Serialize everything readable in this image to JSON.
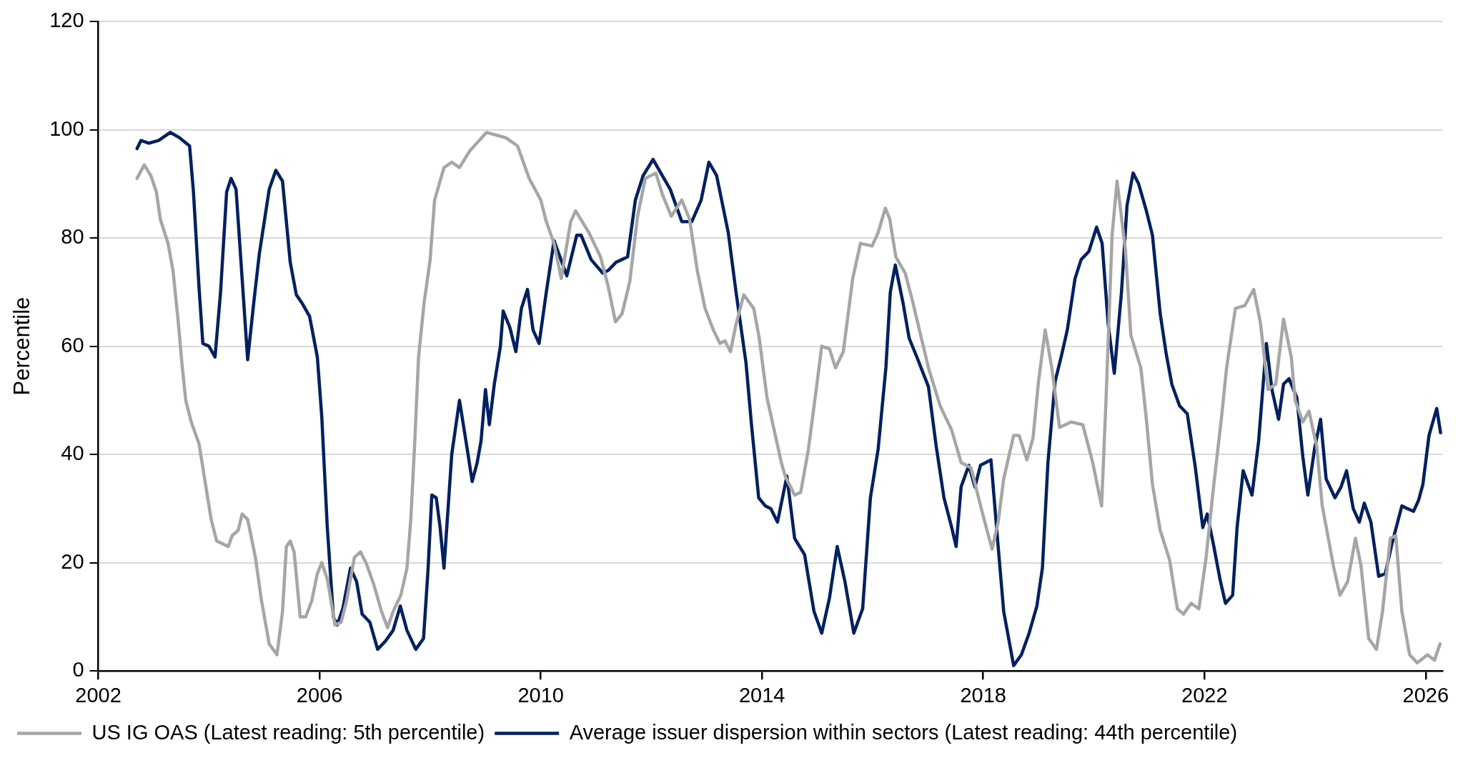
{
  "chart_data": {
    "type": "line",
    "ylabel": "Percentile",
    "xlim": [
      2002,
      2026.3
    ],
    "xticks": [
      2002,
      2006,
      2010,
      2014,
      2018,
      2022,
      2026
    ],
    "ylim": [
      0,
      120
    ],
    "yticks": [
      0,
      20,
      40,
      60,
      80,
      100,
      120
    ],
    "grid": "y",
    "legend": "bottom",
    "line_style": "solid",
    "series": [
      {
        "name": "US IG OAS (Latest reading: 5th percentile)",
        "color": "#a6a6a6",
        "x": [
          2002.7,
          2002.83,
          2002.95,
          2003.05,
          2003.12,
          2003.26,
          2003.35,
          2003.44,
          2003.51,
          2003.58,
          2003.68,
          2003.82,
          2003.93,
          2004.04,
          2004.14,
          2004.25,
          2004.35,
          2004.42,
          2004.53,
          2004.6,
          2004.7,
          2004.84,
          2004.95,
          2005.09,
          2005.23,
          2005.33,
          2005.4,
          2005.47,
          2005.54,
          2005.65,
          2005.75,
          2005.86,
          2005.96,
          2006.04,
          2006.14,
          2006.28,
          2006.39,
          2006.49,
          2006.63,
          2006.74,
          2006.84,
          2006.98,
          2007.12,
          2007.23,
          2007.33,
          2007.47,
          2007.58,
          2007.65,
          2007.72,
          2007.79,
          2007.89,
          2008.0,
          2008.08,
          2008.25,
          2008.39,
          2008.53,
          2008.71,
          2009.02,
          2009.37,
          2009.58,
          2009.79,
          2010.0,
          2010.1,
          2010.24,
          2010.37,
          2010.54,
          2010.63,
          2010.87,
          2011.08,
          2011.22,
          2011.35,
          2011.47,
          2011.61,
          2011.75,
          2011.89,
          2012.08,
          2012.2,
          2012.36,
          2012.55,
          2012.69,
          2012.83,
          2012.97,
          2013.12,
          2013.24,
          2013.33,
          2013.43,
          2013.53,
          2013.67,
          2013.85,
          2013.95,
          2014.09,
          2014.23,
          2014.35,
          2014.42,
          2014.59,
          2014.7,
          2014.84,
          2014.98,
          2015.08,
          2015.22,
          2015.33,
          2015.47,
          2015.64,
          2015.78,
          2015.99,
          2016.1,
          2016.23,
          2016.31,
          2016.42,
          2016.59,
          2016.73,
          2016.87,
          2017.01,
          2017.22,
          2017.43,
          2017.6,
          2017.78,
          2017.99,
          2018.16,
          2018.27,
          2018.37,
          2018.55,
          2018.65,
          2018.79,
          2018.9,
          2019.0,
          2019.12,
          2019.24,
          2019.38,
          2019.59,
          2019.8,
          2019.98,
          2020.14,
          2020.22,
          2020.33,
          2020.42,
          2020.57,
          2020.67,
          2020.85,
          2020.95,
          2021.06,
          2021.2,
          2021.37,
          2021.51,
          2021.62,
          2021.76,
          2021.9,
          2022.03,
          2022.17,
          2022.31,
          2022.4,
          2022.56,
          2022.73,
          2022.89,
          2023.01,
          2023.15,
          2023.29,
          2023.43,
          2023.57,
          2023.64,
          2023.78,
          2023.89,
          2024.03,
          2024.13,
          2024.24,
          2024.34,
          2024.45,
          2024.59,
          2024.73,
          2024.83,
          2024.97,
          2025.11,
          2025.22,
          2025.36,
          2025.46,
          2025.57,
          2025.71,
          2025.85,
          2026.03,
          2026.16,
          2026.26
        ],
        "values": [
          91,
          93.5,
          91.5,
          88.5,
          83.5,
          79,
          74,
          65,
          57,
          50,
          46,
          42,
          35,
          28,
          24,
          23.5,
          23,
          25,
          26,
          29,
          28,
          21,
          13,
          5,
          3,
          11,
          23,
          24,
          22,
          10,
          10,
          13,
          18,
          20,
          17,
          8.5,
          9,
          13,
          21,
          22,
          20,
          16,
          11,
          8,
          11,
          14,
          19,
          28,
          42,
          58,
          68,
          76,
          87,
          93,
          94,
          93,
          96,
          99.5,
          98.5,
          97,
          91,
          87,
          83,
          79,
          72.5,
          83,
          85,
          81,
          76.5,
          71,
          64.5,
          66,
          72,
          84,
          91,
          92,
          88,
          84,
          87,
          83.5,
          74,
          67,
          63,
          60.5,
          61,
          59,
          64,
          69.5,
          67,
          61.5,
          50.5,
          44,
          38.5,
          36,
          32.5,
          33,
          41,
          52,
          60,
          59.5,
          56,
          59,
          72.5,
          79,
          78.5,
          81,
          85.5,
          83.5,
          76.5,
          73.5,
          68,
          62,
          56,
          49,
          44.5,
          38.5,
          37.5,
          29,
          22.5,
          27.5,
          35.5,
          43.5,
          43.5,
          39,
          43,
          53.5,
          63,
          56,
          45,
          46,
          45.5,
          38.5,
          30.5,
          50,
          80.5,
          90.5,
          78,
          62,
          56,
          46.5,
          34.5,
          26,
          20.5,
          11.5,
          10.5,
          12.5,
          11.5,
          21,
          34.5,
          47,
          56,
          67,
          67.5,
          70.5,
          64.5,
          52,
          53,
          65,
          58,
          50,
          46,
          48,
          41.5,
          30.5,
          24.5,
          19,
          14,
          16.5,
          24.5,
          19.5,
          6,
          4,
          11,
          24.5,
          25,
          11,
          3,
          1.5,
          3,
          2,
          5
        ]
      },
      {
        "name": "Average issuer dispersion within sectors (Latest reading: 44th percentile)",
        "color": "#002060",
        "x": [
          2002.7,
          2002.77,
          2002.91,
          2003.09,
          2003.3,
          2003.47,
          2003.65,
          2003.72,
          2003.82,
          2003.89,
          2004.0,
          2004.11,
          2004.21,
          2004.32,
          2004.4,
          2004.49,
          2004.6,
          2004.7,
          2004.81,
          2004.91,
          2005.09,
          2005.21,
          2005.33,
          2005.47,
          2005.58,
          2005.68,
          2005.82,
          2005.96,
          2006.04,
          2006.14,
          2006.25,
          2006.32,
          2006.42,
          2006.56,
          2006.67,
          2006.77,
          2006.91,
          2007.05,
          2007.19,
          2007.33,
          2007.46,
          2007.58,
          2007.74,
          2007.88,
          2007.96,
          2008.03,
          2008.11,
          2008.18,
          2008.25,
          2008.39,
          2008.53,
          2008.67,
          2008.76,
          2008.85,
          2008.92,
          2009.0,
          2009.07,
          2009.16,
          2009.27,
          2009.32,
          2009.44,
          2009.55,
          2009.65,
          2009.76,
          2009.86,
          2009.97,
          2010.1,
          2010.24,
          2010.47,
          2010.65,
          2010.73,
          2010.91,
          2011.12,
          2011.22,
          2011.36,
          2011.57,
          2011.71,
          2011.85,
          2012.03,
          2012.17,
          2012.34,
          2012.55,
          2012.73,
          2012.9,
          2013.04,
          2013.18,
          2013.39,
          2013.53,
          2013.71,
          2013.81,
          2013.94,
          2014.06,
          2014.16,
          2014.28,
          2014.45,
          2014.59,
          2014.77,
          2014.94,
          2015.08,
          2015.22,
          2015.36,
          2015.5,
          2015.66,
          2015.82,
          2015.96,
          2016.1,
          2016.24,
          2016.32,
          2016.41,
          2016.55,
          2016.66,
          2016.8,
          2017.01,
          2017.15,
          2017.29,
          2017.43,
          2017.51,
          2017.6,
          2017.74,
          2017.85,
          2017.95,
          2018.14,
          2018.27,
          2018.37,
          2018.55,
          2018.69,
          2018.83,
          2018.97,
          2019.07,
          2019.17,
          2019.3,
          2019.42,
          2019.52,
          2019.66,
          2019.77,
          2019.91,
          2020.05,
          2020.15,
          2020.26,
          2020.37,
          2020.5,
          2020.6,
          2020.71,
          2020.81,
          2020.95,
          2021.06,
          2021.2,
          2021.31,
          2021.41,
          2021.55,
          2021.69,
          2021.83,
          2021.97,
          2022.05,
          2022.17,
          2022.28,
          2022.38,
          2022.51,
          2022.59,
          2022.7,
          2022.86,
          2022.98,
          2023.12,
          2023.22,
          2023.34,
          2023.43,
          2023.53,
          2023.67,
          2023.78,
          2023.87,
          2023.99,
          2024.1,
          2024.2,
          2024.36,
          2024.47,
          2024.57,
          2024.69,
          2024.8,
          2024.89,
          2025.01,
          2025.15,
          2025.27,
          2025.39,
          2025.57,
          2025.67,
          2025.78,
          2025.87,
          2025.95,
          2026.06,
          2026.2,
          2026.27
        ],
        "values": [
          96.5,
          98,
          97.5,
          98,
          99.5,
          98.5,
          97,
          88.5,
          71,
          60.5,
          60,
          58,
          70,
          88.5,
          91,
          89,
          72.5,
          57.5,
          68,
          77,
          89,
          92.5,
          90.5,
          75.5,
          69.5,
          68,
          65.5,
          58,
          47,
          26.5,
          10,
          8.5,
          11.5,
          19,
          16.5,
          10.5,
          9,
          4,
          5.5,
          7.5,
          12,
          7.5,
          4,
          6,
          18.5,
          32.5,
          32,
          26.5,
          19,
          40,
          50,
          41,
          35,
          38.5,
          42.5,
          52,
          45.5,
          53,
          60,
          66.5,
          63.5,
          59,
          67,
          70.5,
          63,
          60.5,
          70,
          79.5,
          73,
          80.5,
          80.5,
          76,
          73.5,
          74,
          75.5,
          76.5,
          87,
          91.5,
          94.5,
          92,
          89,
          83,
          83,
          87,
          94,
          91.5,
          81,
          70,
          57,
          45.5,
          32,
          30.5,
          30,
          27.5,
          36,
          24.5,
          21.5,
          11,
          7,
          13.5,
          23,
          16.5,
          7,
          11.5,
          32,
          41,
          56,
          70,
          75,
          68,
          61.5,
          58,
          52.5,
          41.5,
          32,
          26.5,
          23,
          34,
          38,
          34,
          38,
          39,
          23,
          11,
          1,
          3,
          7,
          12,
          19,
          38.5,
          53.5,
          58.5,
          63,
          72.5,
          76,
          77.5,
          82,
          79,
          64,
          55,
          70,
          86,
          92,
          90,
          85,
          80.5,
          66,
          58.5,
          53,
          49,
          47.5,
          38,
          26.5,
          29,
          23,
          17,
          12.5,
          14,
          26.5,
          37,
          32.5,
          42.5,
          60.5,
          52,
          46.5,
          53,
          54,
          50.5,
          39.5,
          32.5,
          41,
          46.5,
          35.5,
          32,
          34,
          37,
          30,
          27.5,
          31,
          27.5,
          17.5,
          18,
          23.5,
          30.5,
          30,
          29.5,
          31.5,
          34.5,
          43.5,
          48.5,
          44
        ]
      }
    ]
  }
}
